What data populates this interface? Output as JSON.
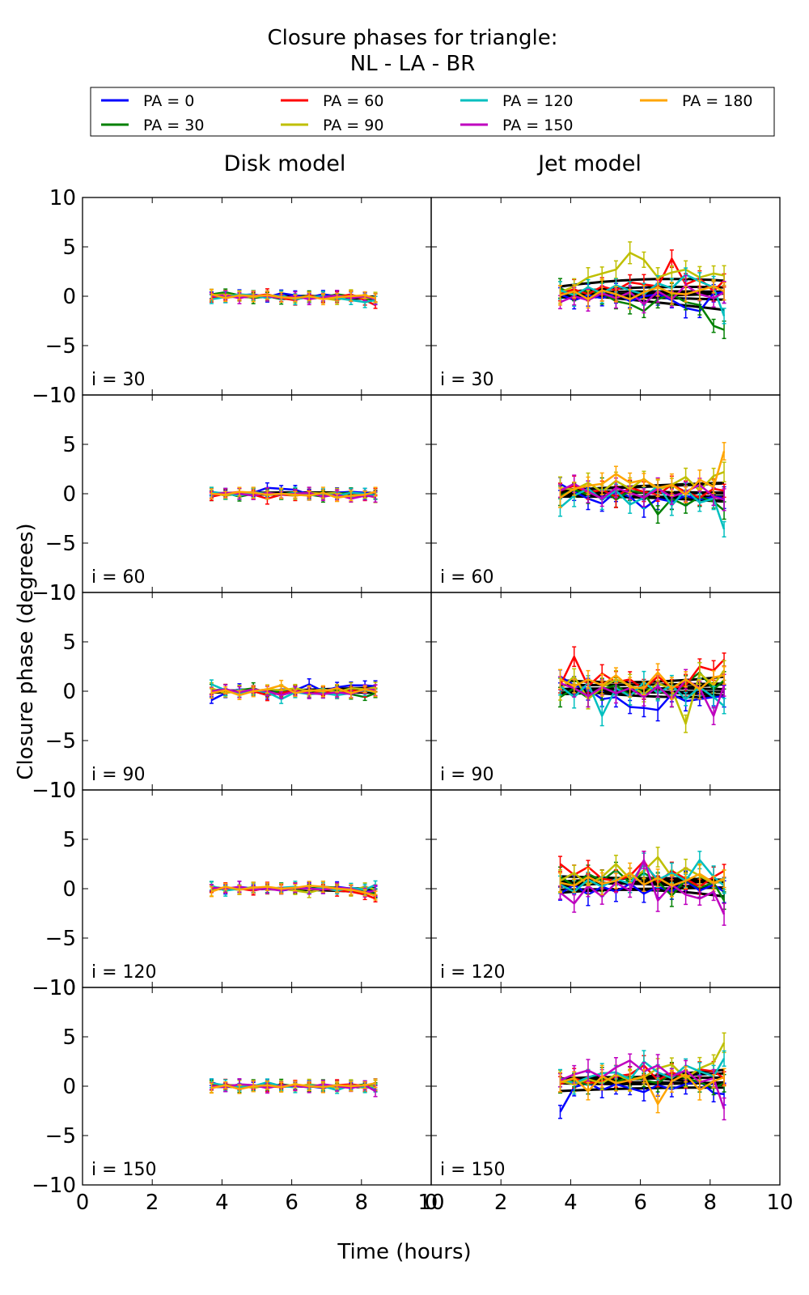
{
  "chart_data": {
    "type": "line",
    "title_line1": "Closure phases for triangle:",
    "title_line2": "NL - LA - BR",
    "xlabel": "Time (hours)",
    "ylabel": "Closure phase (degrees)",
    "xlim": [
      0,
      10
    ],
    "ylim": [
      -10,
      10
    ],
    "xticks": [
      0,
      2,
      4,
      6,
      8,
      10
    ],
    "yticks": [
      -10,
      -5,
      0,
      5,
      10
    ],
    "columns": [
      "Disk model",
      "Jet model"
    ],
    "rows": [
      "i = 30",
      "i = 60",
      "i = 90",
      "i = 120",
      "i = 150"
    ],
    "legend": {
      "placement": "top",
      "entries": [
        {
          "label": "PA = 0",
          "color": "#0000ff"
        },
        {
          "label": "PA = 30",
          "color": "#008000"
        },
        {
          "label": "PA = 60",
          "color": "#ff0000"
        },
        {
          "label": "PA = 90",
          "color": "#bfbf00"
        },
        {
          "label": "PA = 120",
          "color": "#00bfbf"
        },
        {
          "label": "PA = 150",
          "color": "#bf00bf"
        },
        {
          "label": "PA = 180",
          "color": "#ffa500"
        }
      ]
    },
    "x": [
      3.7,
      4.1,
      4.5,
      4.9,
      5.3,
      5.7,
      6.1,
      6.5,
      6.9,
      7.3,
      7.7,
      8.1,
      8.4
    ],
    "series": {
      "disk": [
        [
          [
            0.1,
            -0.2,
            0.1,
            0.2,
            -0.1,
            0.3,
            0.1,
            -0.1,
            0.2,
            0.0,
            0.1,
            -0.1,
            -0.3
          ],
          [
            0.2,
            0.4,
            0.1,
            -0.2,
            0.0,
            -0.3,
            -0.2,
            0.1,
            -0.1,
            0.2,
            0.0,
            -0.3,
            -0.2
          ],
          [
            -0.2,
            0.1,
            -0.1,
            0.0,
            0.2,
            -0.2,
            -0.4,
            0.1,
            -0.2,
            -0.1,
            0.2,
            -0.4,
            -0.9
          ],
          [
            0.1,
            0.2,
            0.0,
            -0.1,
            0.1,
            0.0,
            -0.3,
            -0.1,
            -0.2,
            -0.4,
            0.1,
            -0.2,
            -0.1
          ],
          [
            -0.3,
            -0.1,
            0.2,
            0.1,
            -0.2,
            0.1,
            -0.3,
            -0.1,
            0.0,
            -0.2,
            -0.4,
            -0.6,
            -0.4
          ],
          [
            0.0,
            0.1,
            -0.2,
            0.1,
            0.0,
            -0.2,
            0.0,
            -0.3,
            -0.1,
            0.1,
            -0.2,
            0.0,
            -0.3
          ],
          [
            0.2,
            -0.2,
            0.1,
            0.0,
            0.1,
            -0.1,
            -0.2,
            0.0,
            -0.3,
            -0.1,
            0.0,
            0.1,
            -0.2
          ]
        ],
        [
          [
            0.2,
            -0.1,
            0.0,
            0.1,
            0.6,
            0.5,
            0.4,
            -0.1,
            0.0,
            0.1,
            0.2,
            0.1,
            0.0
          ],
          [
            -0.2,
            0.1,
            -0.3,
            0.0,
            0.1,
            -0.1,
            0.2,
            -0.1,
            -0.3,
            0.0,
            0.1,
            -0.3,
            -0.1
          ],
          [
            -0.3,
            0.0,
            0.2,
            -0.1,
            -0.5,
            -0.1,
            -0.2,
            0.0,
            -0.1,
            -0.2,
            0.1,
            -0.2,
            0.2
          ],
          [
            0.1,
            -0.2,
            0.0,
            0.2,
            -0.1,
            0.0,
            -0.2,
            0.1,
            0.0,
            0.1,
            -0.3,
            -0.1,
            -0.4
          ],
          [
            0.2,
            0.0,
            -0.2,
            0.1,
            0.0,
            -0.1,
            0.1,
            -0.2,
            0.0,
            -0.2,
            0.1,
            0.0,
            -0.2
          ],
          [
            -0.1,
            0.1,
            0.0,
            -0.2,
            0.1,
            -0.1,
            0.0,
            0.1,
            -0.3,
            -0.1,
            -0.5,
            -0.2,
            -0.3
          ],
          [
            0.0,
            -0.1,
            0.2,
            0.1,
            -0.1,
            0.0,
            -0.1,
            -0.2,
            0.1,
            -0.4,
            -0.2,
            -0.1,
            0.2
          ]
        ],
        [
          [
            -0.9,
            -0.2,
            0.2,
            0.1,
            -0.3,
            0.2,
            0.1,
            0.7,
            0.0,
            0.4,
            0.6,
            0.6,
            0.5
          ],
          [
            0.2,
            -0.1,
            0.1,
            0.3,
            -0.2,
            0.0,
            -0.2,
            0.1,
            -0.1,
            0.2,
            -0.3,
            -0.6,
            -0.2
          ],
          [
            0.0,
            0.2,
            -0.3,
            0.0,
            -0.4,
            -0.2,
            0.1,
            -0.3,
            0.0,
            -0.2,
            0.1,
            -0.1,
            0.3
          ],
          [
            0.3,
            -0.2,
            0.1,
            0.0,
            0.2,
            0.1,
            0.3,
            0.0,
            0.2,
            -0.1,
            0.3,
            0.2,
            0.4
          ],
          [
            0.7,
            0.1,
            -0.2,
            0.1,
            -0.1,
            -0.8,
            -0.1,
            -0.3,
            -0.2,
            -0.4,
            -0.2,
            0.1,
            -0.1
          ],
          [
            0.0,
            0.2,
            -0.1,
            0.2,
            0.0,
            -0.4,
            0.0,
            -0.2,
            -0.3,
            -0.1,
            -0.3,
            0.2,
            0.1
          ],
          [
            -0.2,
            0.1,
            -0.4,
            0.0,
            0.2,
            0.6,
            -0.2,
            0.1,
            0.0,
            0.3,
            -0.2,
            0.2,
            -0.1
          ]
        ],
        [
          [
            0.1,
            -0.1,
            0.2,
            0.0,
            0.1,
            -0.2,
            0.0,
            0.1,
            -0.1,
            0.2,
            0.0,
            -0.2,
            -0.3
          ],
          [
            0.2,
            0.0,
            -0.1,
            0.1,
            0.0,
            0.1,
            -0.2,
            0.0,
            0.2,
            0.1,
            -0.1,
            -0.3,
            -0.5
          ],
          [
            0.0,
            0.1,
            0.0,
            -0.2,
            0.1,
            0.0,
            0.1,
            -0.1,
            0.0,
            -0.2,
            -0.3,
            -0.6,
            -1.0
          ],
          [
            -0.2,
            0.1,
            -0.1,
            0.2,
            -0.1,
            0.0,
            -0.2,
            -0.4,
            0.0,
            0.1,
            -0.2,
            0.2,
            -0.1
          ],
          [
            0.3,
            -0.2,
            0.0,
            0.1,
            -0.1,
            0.1,
            0.2,
            -0.1,
            0.1,
            -0.2,
            0.1,
            -0.1,
            0.4
          ],
          [
            0.1,
            0.0,
            0.2,
            -0.1,
            0.0,
            -0.2,
            0.1,
            0.0,
            -0.1,
            0.1,
            0.0,
            -0.4,
            -0.2
          ],
          [
            -0.3,
            0.2,
            -0.1,
            0.1,
            0.2,
            0.0,
            0.1,
            0.3,
            0.2,
            0.0,
            -0.1,
            -0.4,
            -0.7
          ]
        ],
        [
          [
            0.4,
            -0.1,
            0.1,
            0.0,
            0.2,
            -0.1,
            0.1,
            0.0,
            -0.2,
            0.1,
            0.0,
            -0.1,
            0.2
          ],
          [
            0.1,
            0.0,
            -0.2,
            0.1,
            -0.1,
            0.2,
            0.0,
            -0.1,
            0.1,
            -0.1,
            0.0,
            0.2,
            -0.1
          ],
          [
            0.0,
            0.2,
            -0.1,
            0.1,
            0.0,
            -0.1,
            0.1,
            0.0,
            -0.1,
            0.1,
            0.2,
            0.0,
            -0.2
          ],
          [
            -0.1,
            0.0,
            0.1,
            -0.2,
            0.1,
            0.0,
            -0.1,
            0.2,
            0.0,
            -0.1,
            0.1,
            -0.2,
            0.1
          ],
          [
            0.3,
            0.1,
            -0.1,
            0.0,
            0.4,
            0.0,
            -0.1,
            0.1,
            0.0,
            -0.4,
            0.1,
            -0.1,
            -0.2
          ],
          [
            0.0,
            -0.1,
            0.2,
            0.1,
            -0.2,
            0.1,
            0.0,
            -0.1,
            0.2,
            0.0,
            -0.2,
            0.1,
            -0.5
          ],
          [
            -0.2,
            0.1,
            -0.3,
            0.0,
            0.1,
            -0.1,
            0.2,
            0.0,
            -0.1,
            0.1,
            0.0,
            0.1,
            0.3
          ]
        ]
      ],
      "jet": [
        [
          [
            0.2,
            -0.4,
            0.1,
            -0.2,
            0.3,
            -0.5,
            0.0,
            0.2,
            -0.4,
            -1.2,
            -1.5,
            0.3,
            0.4
          ],
          [
            0.8,
            0.2,
            0.5,
            0.3,
            -0.5,
            -0.8,
            -1.5,
            -0.3,
            0.2,
            -0.6,
            -0.9,
            -3.0,
            -3.4
          ],
          [
            0.3,
            0.7,
            0.2,
            1.0,
            0.6,
            1.4,
            1.2,
            1.0,
            3.8,
            1.2,
            1.8,
            0.5,
            1.6
          ],
          [
            0.4,
            1.0,
            1.9,
            2.3,
            2.7,
            4.4,
            3.7,
            1.9,
            2.4,
            2.7,
            1.9,
            2.3,
            2.1
          ],
          [
            0.6,
            0.1,
            0.9,
            0.3,
            1.1,
            0.6,
            0.2,
            1.3,
            0.8,
            2.2,
            1.5,
            0.9,
            -2.0
          ],
          [
            -0.6,
            0.0,
            -0.4,
            0.3,
            -0.2,
            0.4,
            -0.8,
            0.5,
            -0.3,
            1.1,
            0.2,
            -0.2,
            0.4
          ],
          [
            0.1,
            0.5,
            -0.3,
            0.6,
            0.2,
            -0.3,
            0.4,
            0.9,
            0.3,
            0.2,
            0.6,
            1.0,
            0.5
          ]
        ],
        [
          [
            1.0,
            0.2,
            -0.5,
            -1.0,
            0.2,
            -0.3,
            -1.5,
            -0.5,
            -0.8,
            -0.2,
            -0.6,
            -0.3,
            -0.4
          ],
          [
            -0.2,
            0.4,
            -0.1,
            0.5,
            -0.6,
            0.3,
            0.1,
            -2.1,
            -0.5,
            -1.2,
            -0.3,
            -0.8,
            -1.7
          ],
          [
            0.3,
            0.8,
            0.1,
            0.4,
            -0.3,
            0.6,
            0.2,
            -0.1,
            0.9,
            0.2,
            -0.4,
            0.5,
            0.3
          ],
          [
            0.6,
            0.4,
            1.1,
            0.2,
            1.3,
            0.5,
            1.5,
            0.4,
            0.9,
            1.7,
            0.3,
            1.8,
            2.2
          ],
          [
            -1.4,
            -0.2,
            0.5,
            -0.6,
            0.3,
            -1.1,
            -0.4,
            0.8,
            -1.2,
            0.4,
            -0.9,
            -0.5,
            -3.6
          ],
          [
            0.3,
            1.0,
            0.2,
            -0.5,
            0.6,
            0.1,
            -0.4,
            0.5,
            -0.3,
            0.2,
            0.9,
            -0.3,
            -0.6
          ],
          [
            -0.4,
            0.5,
            0.8,
            1.0,
            2.0,
            1.1,
            1.4,
            0.6,
            0.9,
            -0.1,
            1.4,
            0.7,
            4.3
          ]
        ],
        [
          [
            1.5,
            0.6,
            0.2,
            -0.8,
            -0.6,
            -1.6,
            -1.7,
            -1.9,
            -0.3,
            -1.0,
            -0.8,
            -0.6,
            -0.5
          ],
          [
            -0.6,
            0.3,
            -0.7,
            0.2,
            0.6,
            -0.4,
            0.3,
            0.1,
            -0.5,
            0.8,
            1.9,
            0.2,
            1.1
          ],
          [
            0.6,
            3.5,
            0.5,
            1.8,
            0.9,
            1.2,
            0.2,
            1.5,
            0.3,
            0.6,
            2.5,
            2.1,
            3.2
          ],
          [
            0.2,
            1.5,
            -0.8,
            0.4,
            1.2,
            0.6,
            -0.3,
            0.8,
            0.2,
            -3.3,
            1.8,
            0.6,
            2.1
          ],
          [
            0.5,
            -0.6,
            0.8,
            -2.5,
            0.3,
            -0.5,
            0.9,
            -0.2,
            0.6,
            -0.8,
            0.4,
            -0.6,
            -1.5
          ],
          [
            0.8,
            0.3,
            -0.5,
            0.4,
            -0.2,
            0.3,
            -0.6,
            0.5,
            -0.8,
            1.2,
            0.3,
            -2.5,
            0.6
          ],
          [
            1.2,
            0.5,
            1.2,
            0.6,
            1.6,
            0.4,
            0.3,
            1.9,
            0.3,
            1.2,
            0.2,
            1.4,
            1.6
          ]
        ],
        [
          [
            -0.5,
            0.4,
            -0.6,
            0.2,
            -0.3,
            0.5,
            -0.5,
            0.2,
            -0.3,
            0.8,
            -0.2,
            0.4,
            -0.3
          ],
          [
            1.2,
            0.3,
            1.5,
            0.8,
            1.9,
            0.6,
            1.6,
            0.7,
            -0.7,
            0.9,
            0.1,
            0.6,
            -1.2
          ],
          [
            2.5,
            1.4,
            2.2,
            1.0,
            0.8,
            1.3,
            2.8,
            0.6,
            1.8,
            1.0,
            0.2,
            1.2,
            1.8
          ],
          [
            0.8,
            1.6,
            0.4,
            1.2,
            2.5,
            1.0,
            1.8,
            3.2,
            1.2,
            2.1,
            1.3,
            0.5,
            0.9
          ],
          [
            0.4,
            -0.3,
            0.9,
            0.2,
            1.0,
            0.5,
            2.5,
            0.9,
            1.6,
            0.8,
            2.9,
            1.2,
            0.3
          ],
          [
            -0.4,
            -1.5,
            0.3,
            -0.8,
            0.6,
            -0.2,
            2.9,
            -1.2,
            0.4,
            -0.6,
            -1.0,
            -0.3,
            -2.6
          ],
          [
            0.6,
            0.3,
            1.2,
            0.5,
            0.8,
            1.6,
            0.4,
            1.1,
            0.3,
            0.8,
            1.5,
            0.6,
            1.0
          ]
        ],
        [
          [
            -2.6,
            -0.1,
            0.3,
            -0.4,
            0.2,
            -0.2,
            -0.6,
            0.1,
            -0.3,
            0.2,
            0.5,
            -0.7,
            -0.8
          ],
          [
            0.3,
            0.6,
            0.1,
            0.8,
            0.4,
            1.0,
            0.6,
            0.3,
            1.3,
            0.8,
            0.4,
            -0.2,
            0.3
          ],
          [
            0.2,
            0.8,
            0.3,
            0.5,
            1.0,
            1.2,
            2.1,
            0.6,
            1.4,
            0.9,
            1.7,
            1.5,
            0.8
          ],
          [
            0.5,
            0.2,
            0.7,
            0.3,
            1.2,
            0.6,
            0.9,
            1.8,
            2.2,
            0.8,
            1.8,
            2.4,
            4.4
          ],
          [
            0.8,
            0.3,
            0.9,
            1.3,
            1.4,
            0.7,
            2.5,
            1.4,
            0.8,
            2.1,
            1.5,
            1.0,
            2.8
          ],
          [
            0.6,
            1.2,
            1.6,
            0.9,
            1.9,
            2.6,
            1.5,
            2.1,
            1.0,
            1.6,
            0.4,
            0.8,
            -2.3
          ],
          [
            0.4,
            0.8,
            -0.5,
            1.0,
            0.3,
            0.6,
            1.0,
            -1.8,
            0.5,
            1.2,
            -0.4,
            0.5,
            0.9
          ]
        ]
      ]
    }
  }
}
